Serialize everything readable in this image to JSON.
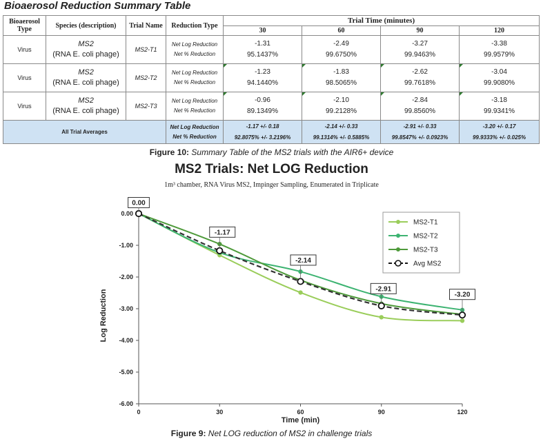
{
  "page_title": "Bioaerosol Reduction Summary Table",
  "table": {
    "headers": {
      "bioaerosol_type": "Bioaerosol Type",
      "species": "Species (description)",
      "trial_name": "Trial Name",
      "reduction_type": "Reduction Type",
      "trial_time": "Trial Time (minutes)",
      "times": [
        "30",
        "60",
        "90",
        "120"
      ]
    },
    "rows": [
      {
        "type": "Virus",
        "species": "MS2",
        "species_desc": "(RNA E. coli phage)",
        "trial": "MS2-T1",
        "label_log": "Net Log Reduction",
        "label_pct": "Net % Reduction",
        "log": [
          "-1.31",
          "-2.49",
          "-3.27",
          "-3.38"
        ],
        "pct": [
          "95.1437%",
          "99.6750%",
          "99.9463%",
          "99.9579%"
        ]
      },
      {
        "type": "Virus",
        "species": "MS2",
        "species_desc": "(RNA E. coli phage)",
        "trial": "MS2-T2",
        "label_log": "Net Log Reduction",
        "label_pct": "Net % Reduction",
        "log": [
          "-1.23",
          "-1.83",
          "-2.62",
          "-3.04"
        ],
        "pct": [
          "94.1440%",
          "98.5065%",
          "99.7618%",
          "99.9080%"
        ]
      },
      {
        "type": "Virus",
        "species": "MS2",
        "species_desc": "(RNA E. coli phage)",
        "trial": "MS2-T3",
        "label_log": "Net Log Reduction",
        "label_pct": "Net % Reduction",
        "log": [
          "-0.96",
          "-2.10",
          "-2.84",
          "-3.18"
        ],
        "pct": [
          "89.1349%",
          "99.2128%",
          "99.8560%",
          "99.9341%"
        ]
      }
    ],
    "averages": {
      "label": "All Trial Averages",
      "label_log": "Net Log Reduction",
      "label_pct": "Net % Reduction",
      "log": [
        "-1.17 +/- 0.18",
        "-2.14 +/- 0.33",
        "-2.91 +/- 0.33",
        "-3.20 +/- 0.17"
      ],
      "pct": [
        "92.8075% +/- 3.2196%",
        "99.1314% +/- 0.5885%",
        "99.8547% +/- 0.0923%",
        "99.9333% +/- 0.025%"
      ]
    }
  },
  "figure10_caption": {
    "label": "Figure 10:",
    "text": "Summary Table of the MS2 trials with the AIR6+ device"
  },
  "figure9_caption": {
    "label": "Figure 9:",
    "text": "Net LOG reduction of MS2 in challenge trials"
  },
  "colors": {
    "t1": "#9acd5a",
    "t2": "#3cb371",
    "t3": "#4e9a3a",
    "avg": "#333333",
    "avg_band": "#cfe2f3",
    "corner_mark": "#2f7a2f"
  },
  "chart_data": {
    "type": "line",
    "title": "MS2 Trials: Net LOG Reduction",
    "subtitle": "1m³ chamber, RNA Virus MS2, Impinger Sampling, Enumerated in Triplicate",
    "xlabel": "Time (min)",
    "ylabel": "Log Reduction",
    "x": [
      0,
      30,
      60,
      90,
      120
    ],
    "x_ticks": [
      "0",
      "30",
      "60",
      "90",
      "120"
    ],
    "y_ticks": [
      "0.00",
      "-1.00",
      "-2.00",
      "-3.00",
      "-4.00",
      "-5.00",
      "-6.00"
    ],
    "xlim": [
      0,
      120
    ],
    "ylim": [
      -6,
      0
    ],
    "grid": false,
    "legend_position": "top-right",
    "series": [
      {
        "name": "MS2-T1",
        "values": [
          0,
          -1.31,
          -2.49,
          -3.27,
          -3.38
        ]
      },
      {
        "name": "MS2-T2",
        "values": [
          0,
          -1.23,
          -1.83,
          -2.62,
          -3.04
        ]
      },
      {
        "name": "MS2-T3",
        "values": [
          0,
          -0.96,
          -2.1,
          -2.84,
          -3.18
        ]
      },
      {
        "name": "Avg MS2",
        "values": [
          0,
          -1.17,
          -2.14,
          -2.91,
          -3.2
        ]
      }
    ],
    "data_labels": [
      "0.00",
      "-1.17",
      "-2.14",
      "-2.91",
      "-3.20"
    ]
  }
}
